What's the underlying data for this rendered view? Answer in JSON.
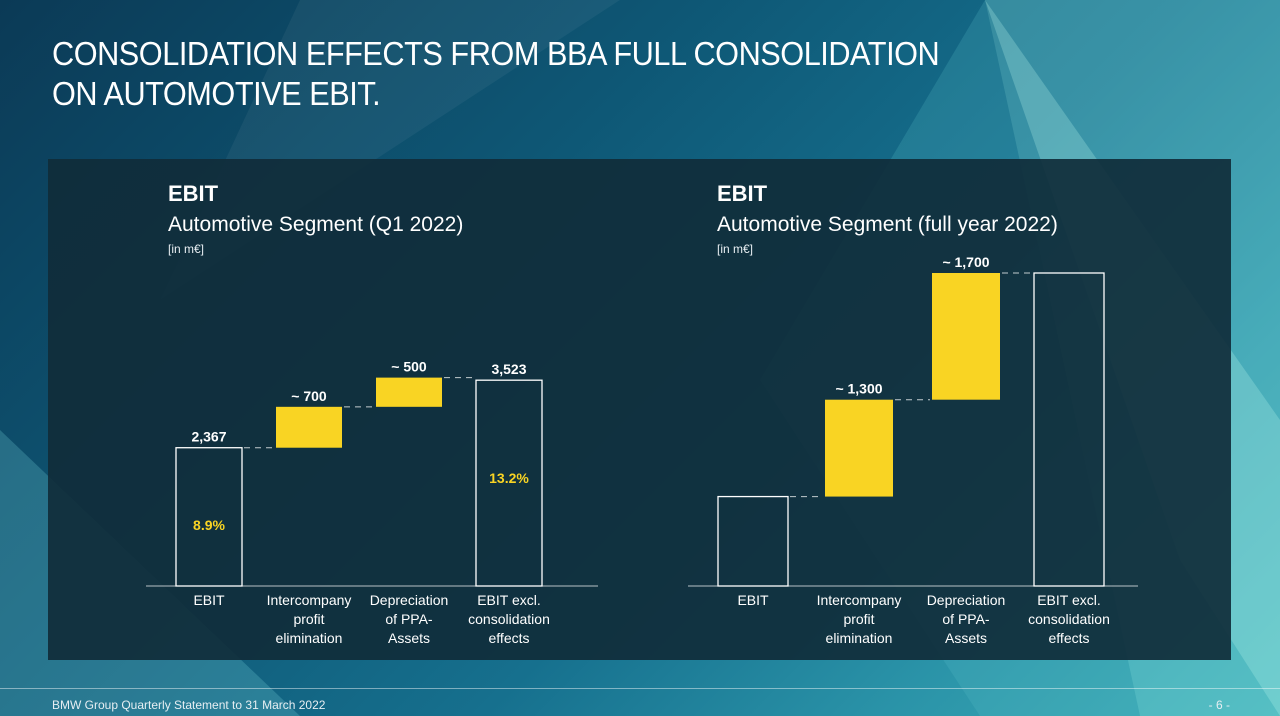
{
  "page": {
    "title_lines": [
      "CONSOLIDATION EFFECTS FROM BBA FULL CONSOLIDATION",
      "ON AUTOMOTIVE EBIT."
    ],
    "footer_left": "BMW Group Quarterly Statement to 31 March 2022",
    "footer_right": "- 6 -"
  },
  "colors": {
    "accent": "#f9d423",
    "bar_outline": "#ffffff",
    "panel": "#102c3a"
  },
  "chart_data": [
    {
      "type": "bar",
      "subtype": "waterfall",
      "title": "EBIT",
      "subtitle": "Automotive Segment (Q1 2022)",
      "unit": "[in m€]",
      "categories": [
        "EBIT",
        "Intercompany profit elimination",
        "Depreciation of PPA-Assets",
        "EBIT excl. consolidation effects"
      ],
      "category_lines": [
        [
          "EBIT"
        ],
        [
          "Intercompany",
          "profit",
          "elimination"
        ],
        [
          "Depreciation",
          "of PPA-",
          "Assets"
        ],
        [
          "EBIT excl.",
          "consolidation",
          "effects"
        ]
      ],
      "values": [
        2367,
        700,
        500,
        3523
      ],
      "kinds": [
        "total",
        "delta",
        "delta",
        "total"
      ],
      "value_labels": [
        "2,367",
        "~ 700",
        "~ 500",
        "3,523"
      ],
      "inner_labels": [
        "8.9%",
        "",
        "",
        "13.2%"
      ],
      "ylim": [
        0,
        3800
      ]
    },
    {
      "type": "bar",
      "subtype": "waterfall",
      "title": "EBIT",
      "subtitle": "Automotive Segment (full year 2022)",
      "unit": "[in m€]",
      "categories": [
        "EBIT",
        "Intercompany profit elimination",
        "Depreciation of PPA-Assets",
        "EBIT excl. consolidation effects"
      ],
      "category_lines": [
        [
          "EBIT"
        ],
        [
          "Intercompany",
          "profit",
          "elimination"
        ],
        [
          "Depreciation",
          "of PPA-",
          "Assets"
        ],
        [
          "EBIT excl.",
          "consolidation",
          "effects"
        ]
      ],
      "values": [
        1200,
        1300,
        1700,
        4200
      ],
      "kinds": [
        "total",
        "delta",
        "delta",
        "total"
      ],
      "value_labels": [
        "",
        "~ 1,300",
        "~ 1,700",
        ""
      ],
      "inner_labels": [
        "",
        "",
        "",
        ""
      ],
      "ylim": [
        0,
        4200
      ]
    }
  ]
}
